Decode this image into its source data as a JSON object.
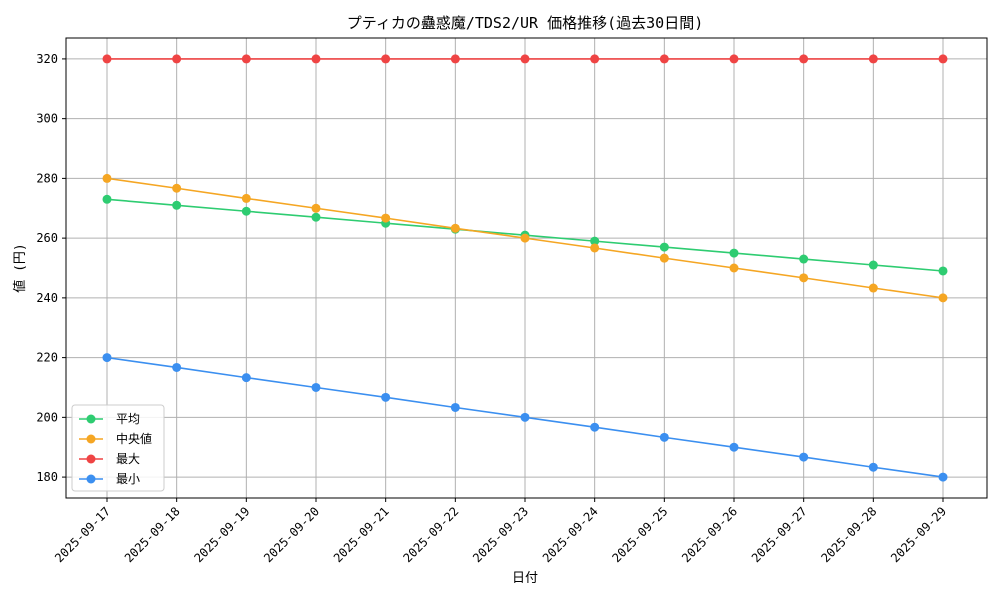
{
  "chart_data": {
    "type": "line",
    "title": "プティカの蠱惑魔/TDS2/UR 価格推移(過去30日間)",
    "xlabel": "日付",
    "ylabel": "値 (円)",
    "categories": [
      "2025-09-17",
      "2025-09-18",
      "2025-09-19",
      "2025-09-20",
      "2025-09-21",
      "2025-09-22",
      "2025-09-23",
      "2025-09-24",
      "2025-09-25",
      "2025-09-26",
      "2025-09-27",
      "2025-09-28",
      "2025-09-29"
    ],
    "ylim": [
      173,
      327
    ],
    "yticks": [
      180,
      200,
      220,
      240,
      260,
      280,
      300,
      320
    ],
    "grid": true,
    "legend_position": "lower-left",
    "series": [
      {
        "name": "平均",
        "color": "#2ecc71",
        "values": [
          273,
          271,
          269,
          267,
          265,
          263,
          261,
          259,
          257,
          255,
          253,
          251,
          249
        ]
      },
      {
        "name": "中央値",
        "color": "#f5a623",
        "values": [
          280,
          276.7,
          273.3,
          270,
          266.7,
          263.3,
          260,
          256.7,
          253.3,
          250,
          246.7,
          243.3,
          240
        ]
      },
      {
        "name": "最大",
        "color": "#ef4444",
        "values": [
          320,
          320,
          320,
          320,
          320,
          320,
          320,
          320,
          320,
          320,
          320,
          320,
          320
        ]
      },
      {
        "name": "最小",
        "color": "#3b8ff0",
        "values": [
          220,
          216.7,
          213.3,
          210,
          206.7,
          203.3,
          200,
          196.7,
          193.3,
          190,
          186.7,
          183.3,
          180
        ]
      }
    ]
  }
}
